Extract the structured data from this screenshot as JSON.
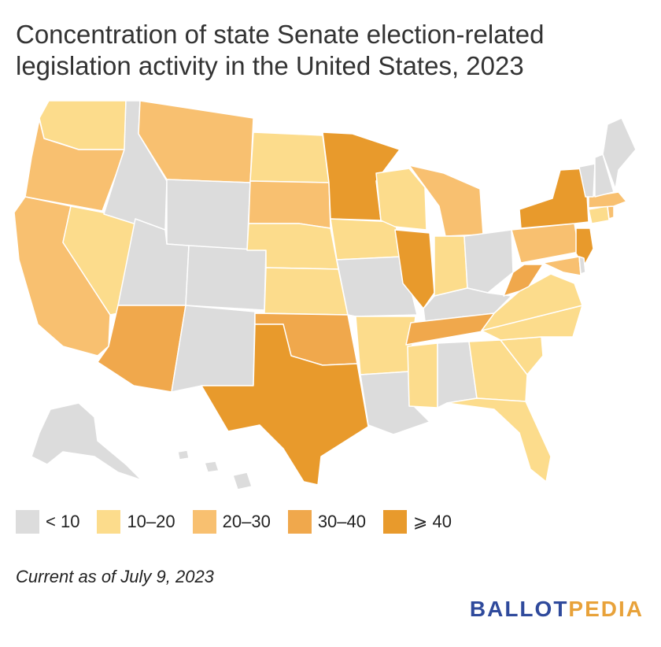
{
  "title": {
    "line1": "Concentration of state Senate election-related",
    "line2": "legislation activity in the United States, 2023"
  },
  "colors": {
    "lt10": "#dcdcdc",
    "b10_20": "#fcdc8c",
    "b20_30": "#f8c070",
    "b30_40": "#f0a84c",
    "ge40": "#e89a2c",
    "border": "#ffffff"
  },
  "legend": [
    {
      "label": "< 10",
      "color": "#dcdcdc"
    },
    {
      "label": "10–20",
      "color": "#fcdc8c"
    },
    {
      "label": "20–30",
      "color": "#f8c070"
    },
    {
      "label": "30–40",
      "color": "#f0a84c"
    },
    {
      "label": "⩾ 40",
      "color": "#e89a2c"
    }
  ],
  "note": "Current as of July 9, 2023",
  "logo": {
    "part1": "BALLOT",
    "part2": "PEDIA"
  }
}
